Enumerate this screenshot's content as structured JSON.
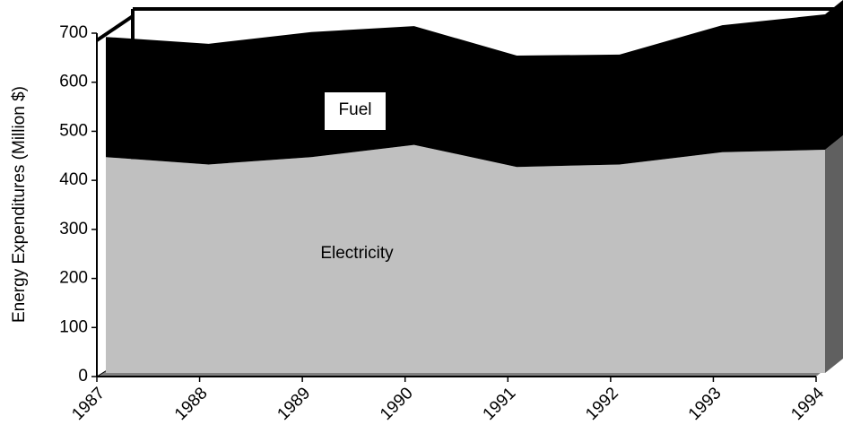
{
  "chart_data": {
    "type": "area",
    "stacked": true,
    "y_label": "Energy Expenditures (Million $)",
    "categories": [
      "1987",
      "1988",
      "1989",
      "1990",
      "1991",
      "1992",
      "1993",
      "1994"
    ],
    "series": [
      {
        "name": "Electricity",
        "color": "#c0c0c0",
        "values": [
          440,
          425,
          440,
          465,
          420,
          425,
          450,
          455
        ]
      },
      {
        "name": "Fuel",
        "color": "#000000",
        "values": [
          245,
          246,
          255,
          242,
          227,
          224,
          259,
          276
        ]
      }
    ],
    "ylim": [
      0,
      700
    ],
    "yticks": [
      0,
      100,
      200,
      300,
      400,
      500,
      600,
      700
    ]
  }
}
